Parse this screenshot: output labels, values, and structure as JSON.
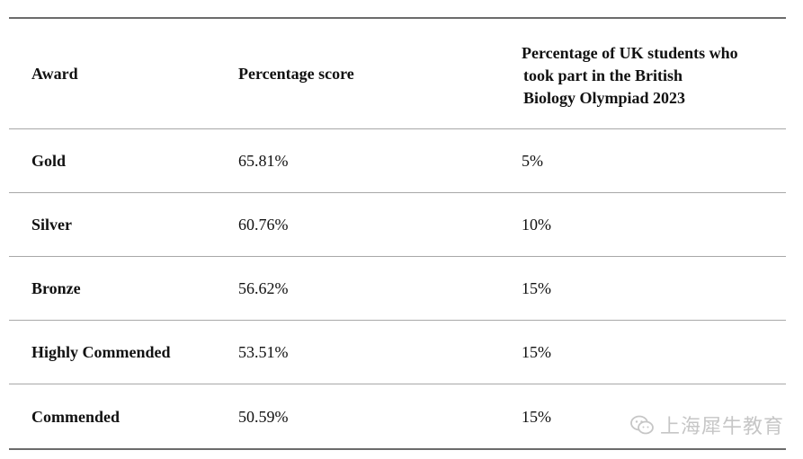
{
  "table": {
    "headers": {
      "award": "Award",
      "score": "Percentage score",
      "percentage_lines": [
        "Percentage of UK students who",
        "took part in the British",
        "Biology Olympiad 2023"
      ]
    },
    "rows": [
      {
        "award": "Gold",
        "score": "65.81%",
        "percentage": "5%"
      },
      {
        "award": "Silver",
        "score": "60.76%",
        "percentage": "10%"
      },
      {
        "award": "Bronze",
        "score": "56.62%",
        "percentage": "15%"
      },
      {
        "award": "Highly Commended",
        "score": "53.51%",
        "percentage": "15%"
      },
      {
        "award": "Commended",
        "score": "50.59%",
        "percentage": "15%"
      }
    ]
  },
  "watermark": {
    "text": "上海犀牛教育",
    "icon": "wechat-icon"
  }
}
